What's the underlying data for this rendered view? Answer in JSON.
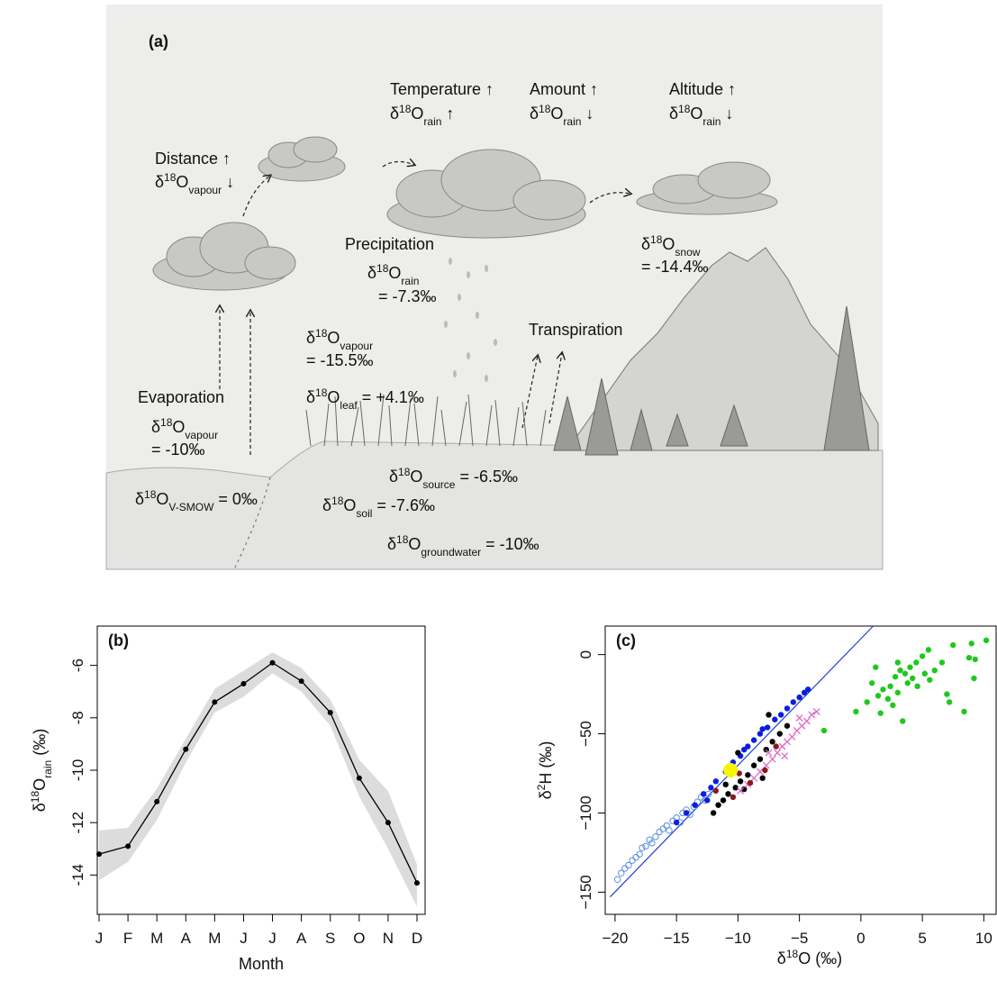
{
  "illustration": {
    "panel": "(a)",
    "temperature": {
      "head": "Temperature ↑",
      "iso": [
        "δ",
        "18",
        "O",
        "rain",
        " ↑"
      ]
    },
    "amount": {
      "head": "Amount ↑",
      "iso": [
        "δ",
        "18",
        "O",
        "rain",
        " ↓"
      ]
    },
    "altitude": {
      "head": "Altitude ↑",
      "iso": [
        "δ",
        "18",
        "O",
        "rain",
        " ↓"
      ]
    },
    "distance": {
      "head": "Distance ↑",
      "iso": [
        "δ",
        "18",
        "O",
        "vapour",
        " ↓"
      ]
    },
    "precipitation": {
      "head": "Precipitation",
      "iso": [
        "δ",
        "18",
        "O",
        "rain"
      ],
      "value": "= -7.3‰"
    },
    "snow": {
      "iso": [
        "δ",
        "18",
        "O",
        "snow"
      ],
      "value": "= -14.4‰"
    },
    "vapour_air": {
      "iso": [
        "δ",
        "18",
        "O",
        "vapour"
      ],
      "value": "= -15.5‰"
    },
    "transpiration": "Transpiration",
    "evaporation": {
      "head": "Evaporation",
      "iso": [
        "δ",
        "18",
        "O",
        "vapour"
      ],
      "value": "= -10‰"
    },
    "leaf": [
      "δ",
      "18",
      "O",
      "leaf",
      " = +4.1‰"
    ],
    "source": [
      "δ",
      "18",
      "O",
      "source",
      " = -6.5‰"
    ],
    "vsmow": [
      "δ",
      "18",
      "O",
      "V-SMOW",
      " = 0‰"
    ],
    "soil": [
      "δ",
      "18",
      "O",
      "soil",
      " = -7.6‰"
    ],
    "groundwater": [
      "δ",
      "18",
      "O",
      "groundwater",
      " = -10‰"
    ]
  },
  "chart_data": [
    {
      "type": "line",
      "title": "(b)",
      "x_label": "Month",
      "y_label": [
        "δ",
        "18",
        "O",
        "rain",
        " (‰)"
      ],
      "categories": [
        "J",
        "F",
        "M",
        "A",
        "M",
        "J",
        "J",
        "A",
        "S",
        "O",
        "N",
        "D"
      ],
      "values": [
        -13.2,
        -12.9,
        -11.2,
        -9.2,
        -7.4,
        -6.7,
        -5.9,
        -6.6,
        -7.8,
        -10.3,
        -12.0,
        -14.3
      ],
      "color": "#000000",
      "band": {
        "color": "#dcdcdc",
        "upper": [
          -12.3,
          -12.2,
          -10.7,
          -8.8,
          -6.9,
          -6.2,
          -5.5,
          -6.1,
          -7.3,
          -9.6,
          -10.8,
          -13.6
        ],
        "lower": [
          -14.2,
          -13.5,
          -11.9,
          -9.7,
          -7.8,
          -7.2,
          -6.3,
          -7.0,
          -8.3,
          -11.0,
          -13.0,
          -15.2
        ]
      },
      "ylim": [
        -15.5,
        -4.5
      ],
      "yticks": [
        -14,
        -12,
        -10,
        -8,
        -6
      ]
    },
    {
      "type": "scatter",
      "title": "(c)",
      "x_label": [
        "δ",
        "18",
        "O (‰)"
      ],
      "y_label": [
        "δ",
        "2",
        "H (‰)"
      ],
      "xlim": [
        -20.8,
        11.0
      ],
      "ylim": [
        -164,
        18
      ],
      "xticks": [
        {
          "value": -20,
          "label": "−20"
        },
        {
          "value": -15,
          "label": "−15"
        },
        {
          "value": -10,
          "label": "−10"
        },
        {
          "value": -5,
          "label": "−5"
        },
        0,
        5,
        10
      ],
      "yticks": [
        0,
        {
          "value": -50,
          "label": "−50"
        },
        {
          "value": -100,
          "label": "−100"
        },
        {
          "value": -150,
          "label": "−150"
        }
      ],
      "line": {
        "color": "#1f3fd6",
        "x": [
          -20.4,
          1.0
        ],
        "y": [
          -153,
          18
        ]
      },
      "series": [
        {
          "marker": "open-circle",
          "color": "#5b8fe0",
          "x": [
            -19.8,
            -19.5,
            -19.2,
            -18.9,
            -18.6,
            -18.3,
            -18.0,
            -17.8,
            -17.5,
            -17.2,
            -17.0,
            -16.7,
            -16.4,
            -16.1,
            -15.8,
            -15.6,
            -15.3,
            -15.0,
            -14.7,
            -14.5,
            -14.2,
            -13.9,
            -13.6,
            -13.3,
            -13.0,
            -12.7,
            -12.4
          ],
          "y": [
            -142,
            -138,
            -135,
            -133,
            -130,
            -128,
            -126,
            -122,
            -121,
            -117,
            -119,
            -115,
            -112,
            -110,
            -108,
            -111,
            -105,
            -103,
            -106,
            -100,
            -98,
            -101,
            -96,
            -93,
            -90,
            -92,
            -88
          ]
        },
        {
          "marker": "dot",
          "color": "#0a1ee0",
          "x": [
            -15.0,
            -14.2,
            -13.5,
            -12.8,
            -12.2,
            -11.8,
            -11.0,
            -10.4,
            -9.8,
            -9.2,
            -8.7,
            -8.2,
            -7.6,
            -7.0,
            -6.5,
            -6.0,
            -5.5,
            -5.0,
            -4.6,
            -4.3,
            -9.5,
            -8.0,
            -12.5
          ],
          "y": [
            -106,
            -100,
            -95,
            -88,
            -84,
            -80,
            -74,
            -68,
            -64,
            -58,
            -54,
            -50,
            -46,
            -41,
            -38,
            -34,
            -30,
            -27,
            -24,
            -22,
            -60,
            -47,
            -92
          ]
        },
        {
          "marker": "dot",
          "color": "#000000",
          "x": [
            -12.0,
            -11.6,
            -11.2,
            -10.8,
            -10.2,
            -9.8,
            -9.2,
            -8.7,
            -8.2,
            -7.7,
            -7.2,
            -6.6,
            -9.5,
            -10.0,
            -8.0,
            -11.0,
            -6.0,
            -7.5
          ],
          "y": [
            -100,
            -95,
            -92,
            -88,
            -84,
            -80,
            -76,
            -70,
            -66,
            -60,
            -55,
            -50,
            -85,
            -62,
            -78,
            -82,
            -45,
            -38
          ]
        },
        {
          "marker": "cross",
          "color": "#e066c8",
          "x": [
            -9.8,
            -9.2,
            -8.7,
            -8.2,
            -7.7,
            -7.2,
            -6.8,
            -6.4,
            -6.0,
            -5.6,
            -5.2,
            -4.8,
            -4.4,
            -4.0,
            -3.6,
            -6.2,
            -7.5,
            -5.0
          ],
          "y": [
            -86,
            -82,
            -78,
            -74,
            -70,
            -66,
            -62,
            -58,
            -55,
            -52,
            -48,
            -45,
            -42,
            -38,
            -36,
            -64,
            -62,
            -40
          ]
        },
        {
          "marker": "dot",
          "color": "#8b1a1a",
          "x": [
            -11.8,
            -10.4,
            -9.0,
            -7.8,
            -6.9,
            -9.9
          ],
          "y": [
            -86,
            -90,
            -81,
            -73,
            -58,
            -75
          ]
        },
        {
          "marker": "big-dot",
          "color": "#f5f500",
          "x": [
            -10.6
          ],
          "y": [
            -73
          ]
        },
        {
          "marker": "dot",
          "color": "#1ec81e",
          "x": [
            10.2,
            9.0,
            7.5,
            8.8,
            5.5,
            5.0,
            4.5,
            4.0,
            3.6,
            3.2,
            2.8,
            4.2,
            3.8,
            5.2,
            6.0,
            5.6,
            2.4,
            1.8,
            3.0,
            2.2,
            1.4,
            0.9,
            2.6,
            1.6,
            3.4,
            0.5,
            -0.4,
            -3.0,
            7.0,
            7.2,
            8.4,
            9.2,
            9.3,
            4.6,
            6.6,
            3.0,
            1.2
          ],
          "y": [
            9,
            7,
            6,
            -2,
            3,
            -1,
            -5,
            -8,
            -12,
            -10,
            -14,
            -15,
            -18,
            -12,
            -10,
            -16,
            -20,
            -22,
            -24,
            -28,
            -26,
            -18,
            -32,
            -37,
            -42,
            -30,
            -36,
            -48,
            -25,
            -30,
            -36,
            -15,
            -3,
            -20,
            -5,
            -5,
            -8
          ]
        }
      ]
    }
  ]
}
